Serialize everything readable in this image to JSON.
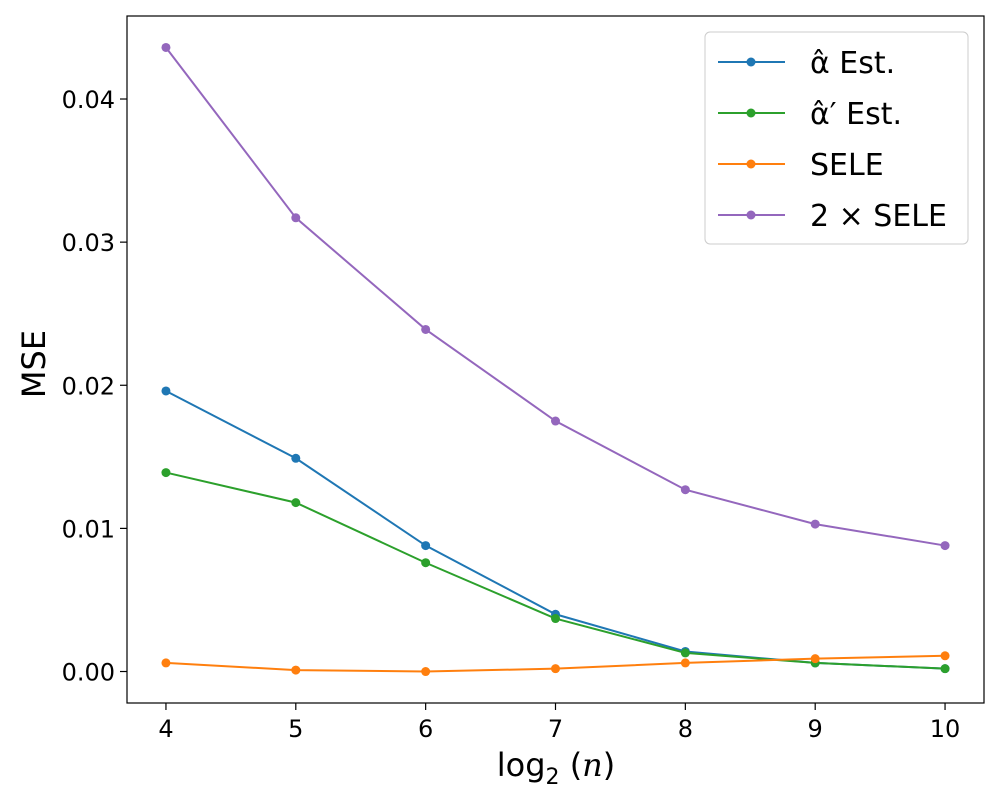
{
  "chart_data": {
    "type": "line",
    "title": "",
    "xlabel": "log2(n)",
    "ylabel": "MSE",
    "x": [
      4,
      5,
      6,
      7,
      8,
      9,
      10
    ],
    "xlim": [
      3.7,
      10.3
    ],
    "ylim": [
      -0.0022,
      0.0458
    ],
    "x_ticks": [
      4,
      5,
      6,
      7,
      8,
      9,
      10
    ],
    "x_tick_labels": [
      "4",
      "5",
      "6",
      "7",
      "8",
      "9",
      "10"
    ],
    "y_ticks": [
      0.0,
      0.01,
      0.02,
      0.03,
      0.04
    ],
    "y_tick_labels": [
      "0.00",
      "0.01",
      "0.02",
      "0.03",
      "0.04"
    ],
    "grid": false,
    "legend_position": "top-right",
    "series": [
      {
        "name": "α̂ Est.",
        "color": "#1f77b4",
        "values": [
          0.0196,
          0.0149,
          0.0088,
          0.004,
          0.0014,
          0.0006,
          0.0002
        ]
      },
      {
        "name": "α̂′ Est.",
        "color": "#2ca02c",
        "values": [
          0.0139,
          0.0118,
          0.0076,
          0.0037,
          0.0013,
          0.0006,
          0.0002
        ]
      },
      {
        "name": "SELE",
        "color": "#ff7f0e",
        "values": [
          0.0006,
          0.0001,
          0.0,
          0.0002,
          0.0006,
          0.0009,
          0.0011
        ]
      },
      {
        "name": "2 × SELE",
        "color": "#9467bd",
        "values": [
          0.0436,
          0.0317,
          0.0239,
          0.0175,
          0.0127,
          0.0103,
          0.0088
        ]
      }
    ]
  }
}
